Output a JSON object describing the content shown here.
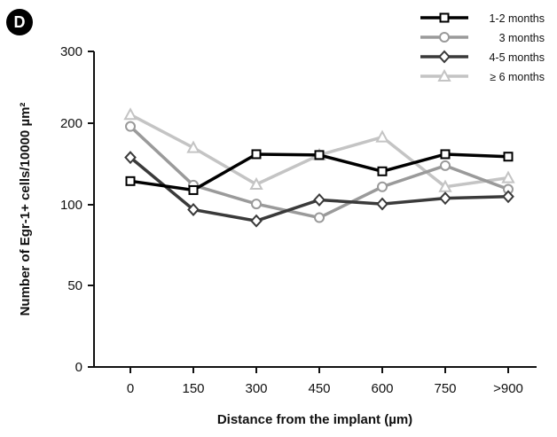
{
  "panel_label": "D",
  "chart_data": {
    "type": "line",
    "xlabel": "Distance from the implant (µm)",
    "ylabel": "Number of Egr-1+ cells/10000 µm²",
    "categories": [
      "0",
      "150",
      "300",
      "450",
      "600",
      "750",
      ">900"
    ],
    "yticks": [
      "0",
      "50",
      "100",
      "200",
      "300"
    ],
    "legend_position": "top-right",
    "grid": false,
    "series": [
      {
        "name": "1-2 months",
        "color": "#000000",
        "marker": "square-open",
        "values": [
          129,
          118,
          162,
          161,
          141,
          162,
          159
        ]
      },
      {
        "name": "3 months",
        "color": "#9a9a9a",
        "marker": "circle-open",
        "values": [
          196,
          124,
          101,
          92,
          122,
          148,
          119
        ]
      },
      {
        "name": "4-5 months",
        "color": "#3a3a3a",
        "marker": "diamond-open",
        "values": [
          158,
          97,
          90,
          106,
          101,
          108,
          110
        ]
      },
      {
        "name": "≥ 6 months",
        "color": "#c4c4c4",
        "marker": "triangle-open",
        "values": [
          212,
          170,
          125,
          161,
          183,
          122,
          133
        ]
      }
    ]
  }
}
